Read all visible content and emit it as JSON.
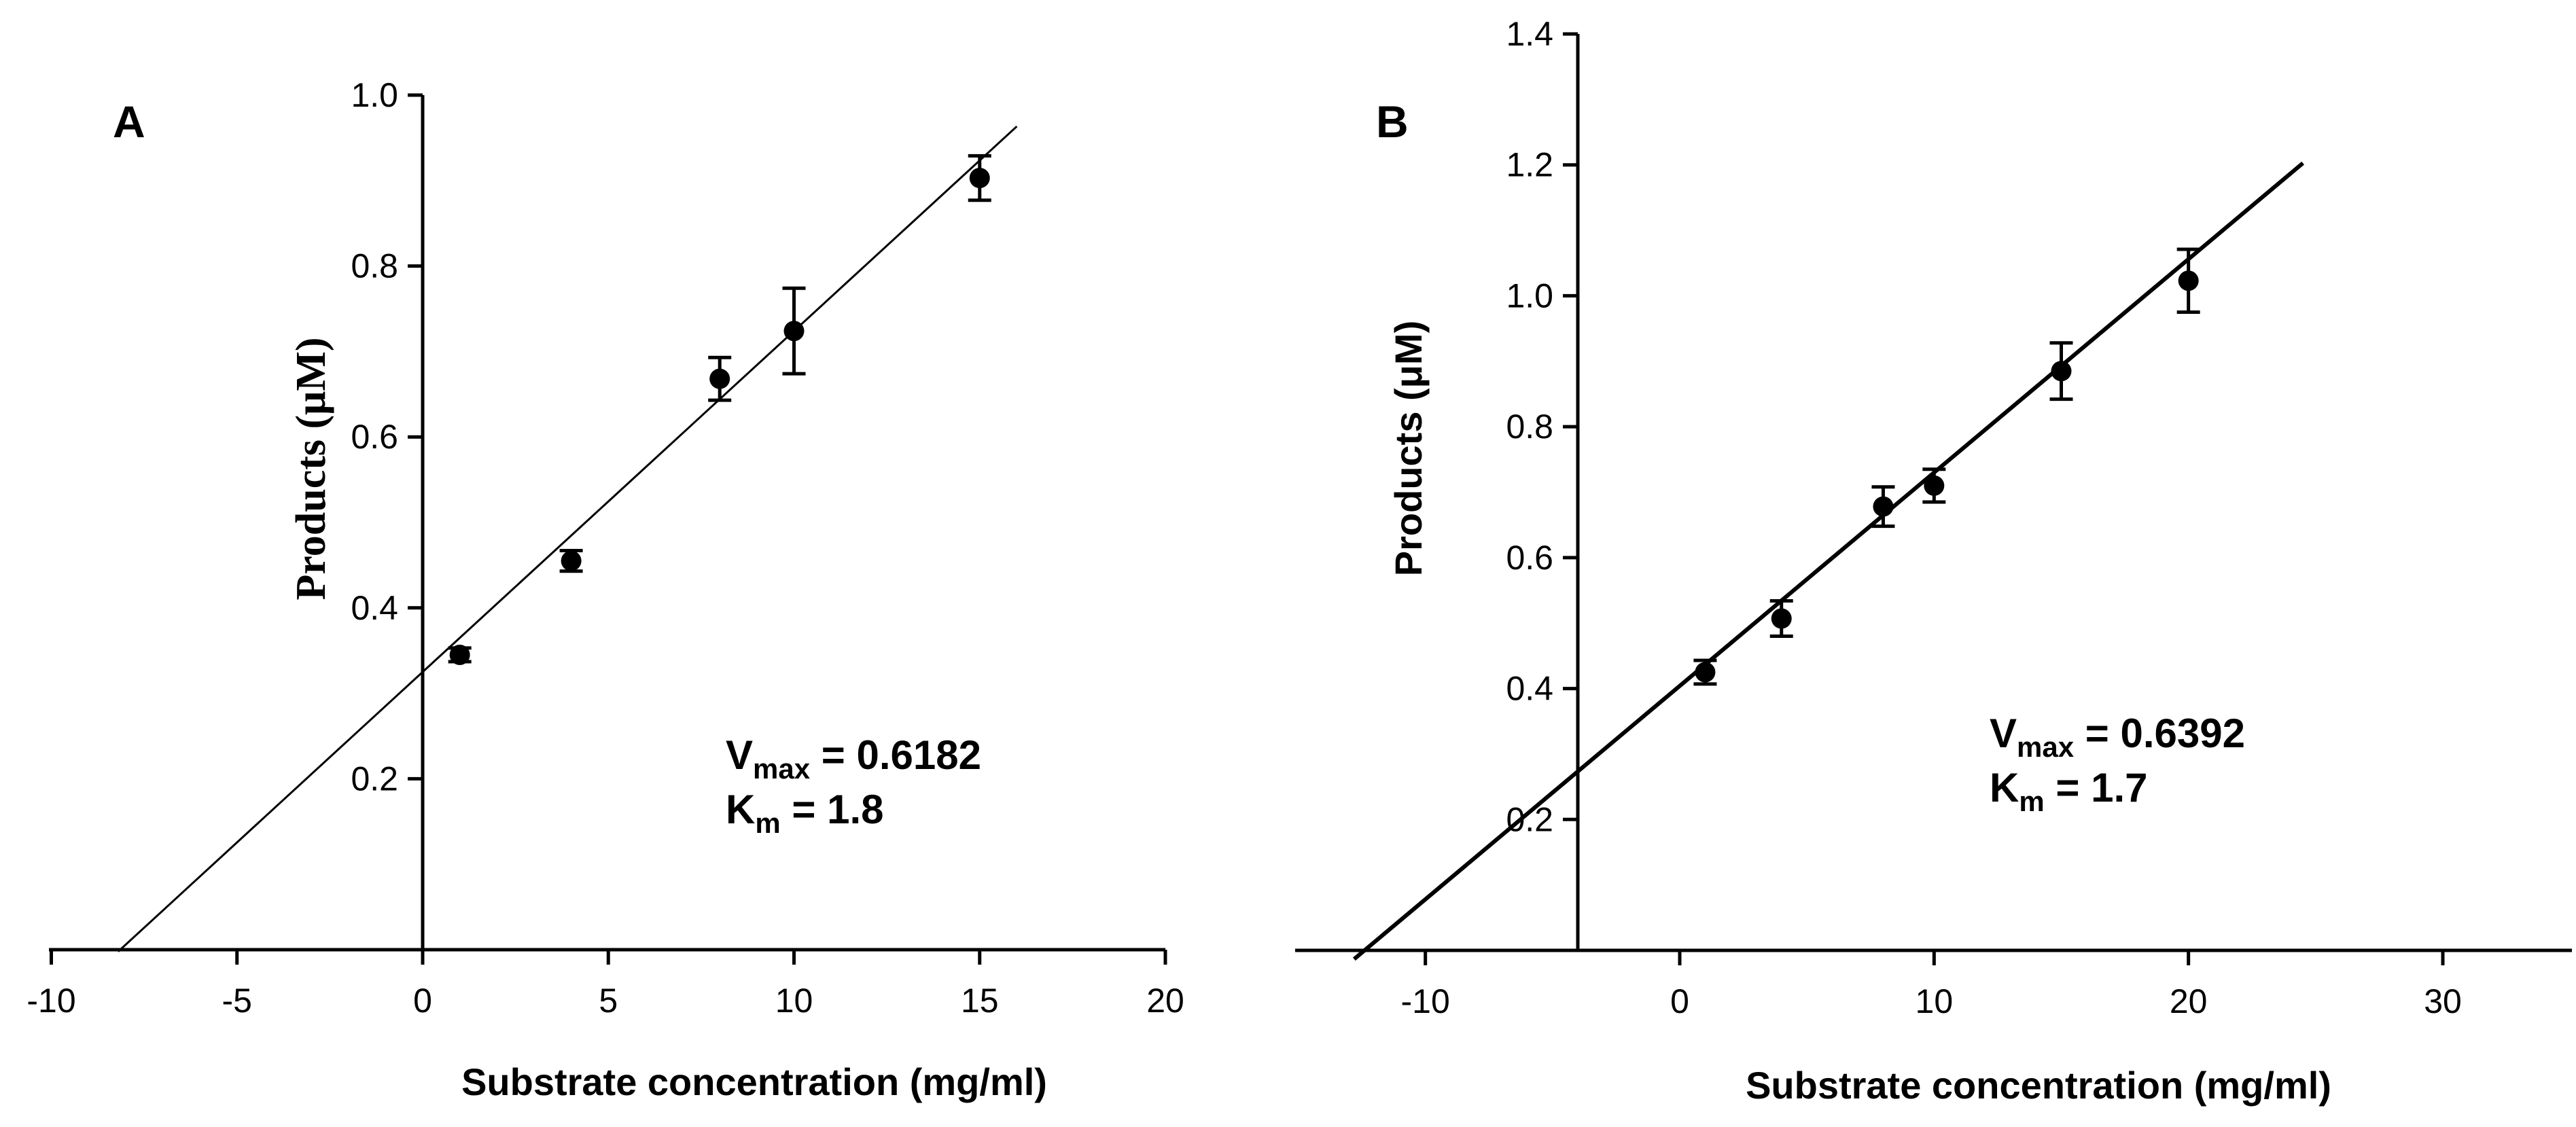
{
  "chart_data": [
    {
      "type": "scatter",
      "panel_label": "A",
      "xlabel": "Substrate concentration  (mg/ml)",
      "ylabel": "Products (μM)",
      "xlim": [
        -10,
        20
      ],
      "ylim": [
        0,
        1.0
      ],
      "x_ticks": [
        -10,
        -5,
        0,
        5,
        10,
        15,
        20
      ],
      "x_tick_labels": [
        "-10",
        "-5",
        "0",
        "5",
        "10",
        "15",
        "20"
      ],
      "y_ticks": [
        0.2,
        0.4,
        0.6,
        0.8,
        1.0
      ],
      "y_tick_labels": [
        "0.2",
        "0.4",
        "0.6",
        "0.8",
        "1.0"
      ],
      "grid": false,
      "series": [
        {
          "name": "Products",
          "x": [
            1,
            4,
            8,
            10,
            15
          ],
          "y": [
            0.345,
            0.455,
            0.668,
            0.724,
            0.903
          ],
          "error": [
            0.008,
            0.012,
            0.025,
            0.05,
            0.026
          ]
        }
      ],
      "fit_line": {
        "x_start": -8.2,
        "x_end": 16,
        "slope": 0.0399,
        "intercept": 0.325
      },
      "annotation": {
        "vmax_label": "V",
        "vmax_sub": "max",
        "vmax_value": " =  0.6182",
        "km_label": "K",
        "km_sub": "m",
        "km_value": " =  1.8"
      }
    },
    {
      "type": "scatter",
      "panel_label": "B",
      "xlabel": "Substrate concentration  (mg/ml)",
      "ylabel": "Products (μM)",
      "xlim": [
        -15,
        35
      ],
      "ylim": [
        0,
        1.4
      ],
      "x_ticks": [
        -10,
        0,
        10,
        20,
        30
      ],
      "x_tick_labels": [
        "-10",
        "0",
        "10",
        "20",
        "30"
      ],
      "y_ticks": [
        0.2,
        0.4,
        0.6,
        0.8,
        1.0,
        1.2,
        1.4
      ],
      "y_tick_labels": [
        "0.2",
        "0.4",
        "0.6",
        "0.8",
        "1.0",
        "1.2",
        "1.4"
      ],
      "grid": false,
      "series": [
        {
          "name": "Products",
          "x": [
            1,
            4,
            8,
            10,
            15,
            20
          ],
          "y": [
            0.425,
            0.507,
            0.678,
            0.71,
            0.885,
            1.023
          ],
          "error": [
            0.018,
            0.027,
            0.03,
            0.025,
            0.043,
            0.048
          ]
        }
      ],
      "fit_line": {
        "x_start": -12.8,
        "x_end": 24.5,
        "slope": 0.0326,
        "intercept": 0.404
      },
      "annotation": {
        "vmax_label": "V",
        "vmax_sub": "max",
        "vmax_value": " =  0.6392",
        "km_label": "K",
        "km_sub": "m",
        "km_value": " =  1.7"
      }
    }
  ]
}
